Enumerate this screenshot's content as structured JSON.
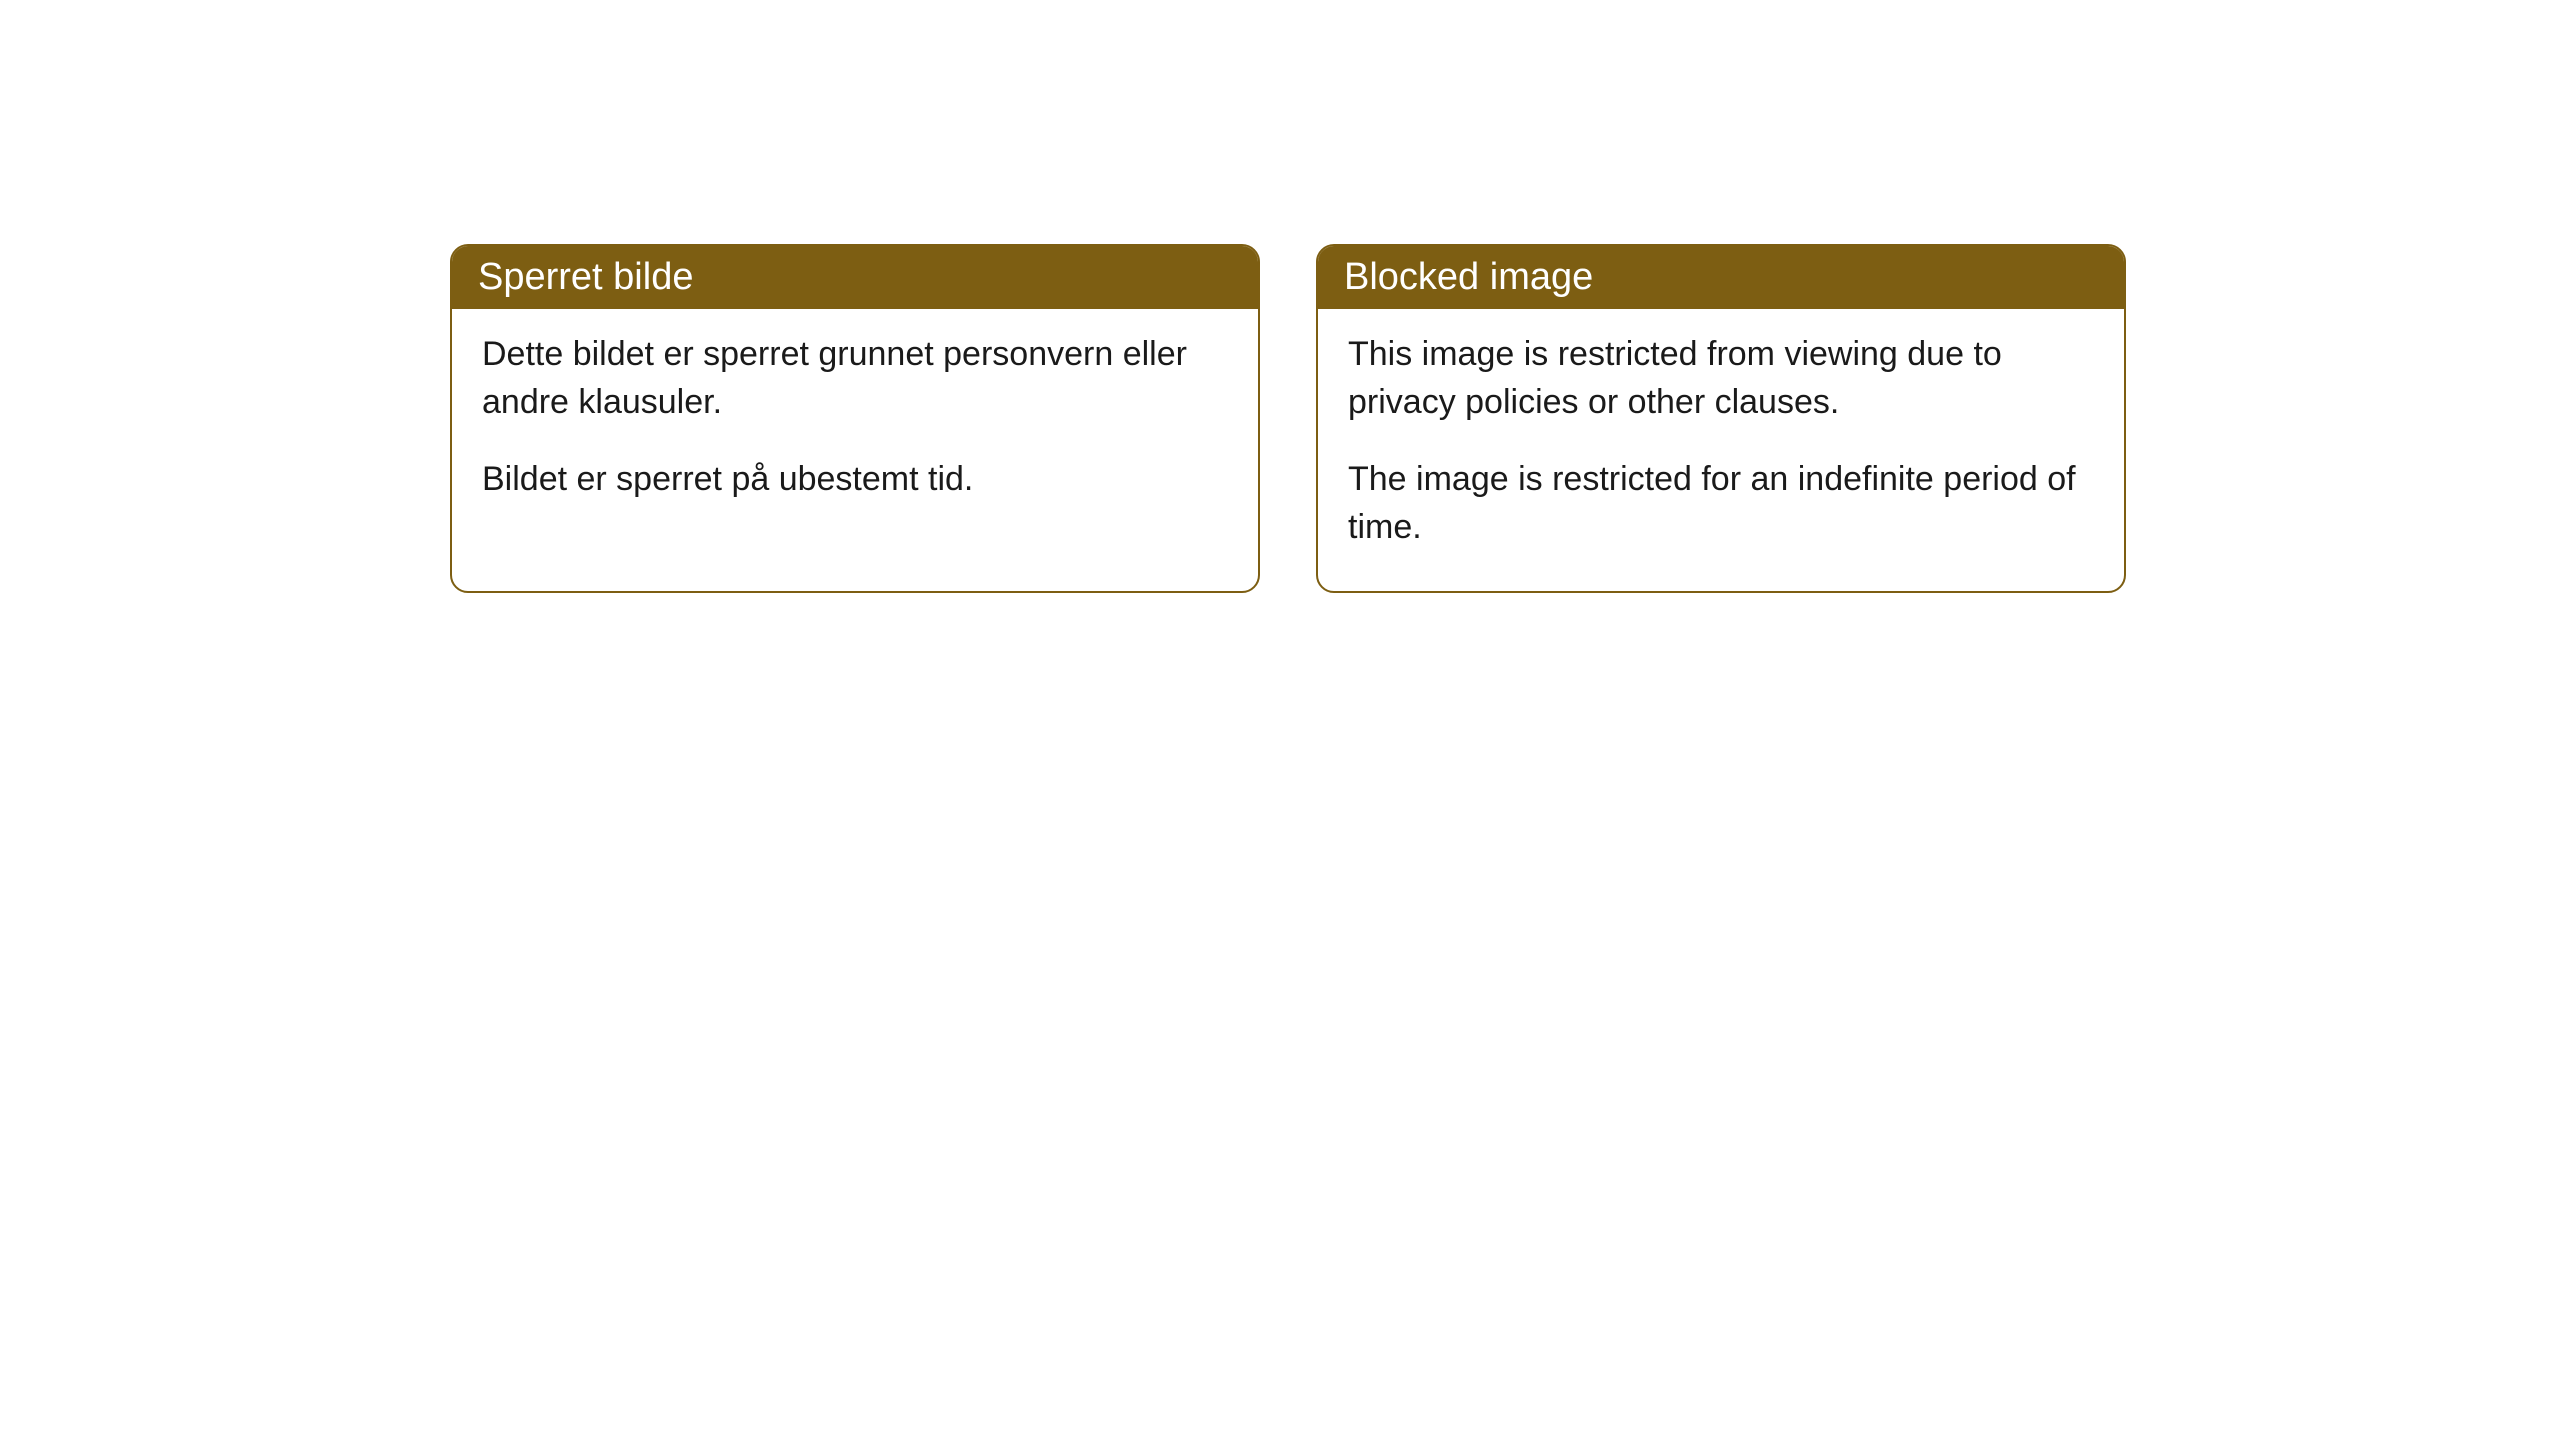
{
  "cards": [
    {
      "title": "Sperret bilde",
      "paragraph1": "Dette bildet er sperret grunnet personvern eller andre klausuler.",
      "paragraph2": "Bildet er sperret på ubestemt tid."
    },
    {
      "title": "Blocked image",
      "paragraph1": "This image is restricted from viewing due to privacy policies or other clauses.",
      "paragraph2": "The image is restricted for an indefinite period of time."
    }
  ],
  "styling": {
    "header_background": "#7d5e12",
    "header_text_color": "#ffffff",
    "border_color": "#7d5e12",
    "body_background": "#ffffff",
    "body_text_color": "#1a1a1a",
    "border_radius": 18,
    "title_fontsize": 38,
    "body_fontsize": 34
  }
}
